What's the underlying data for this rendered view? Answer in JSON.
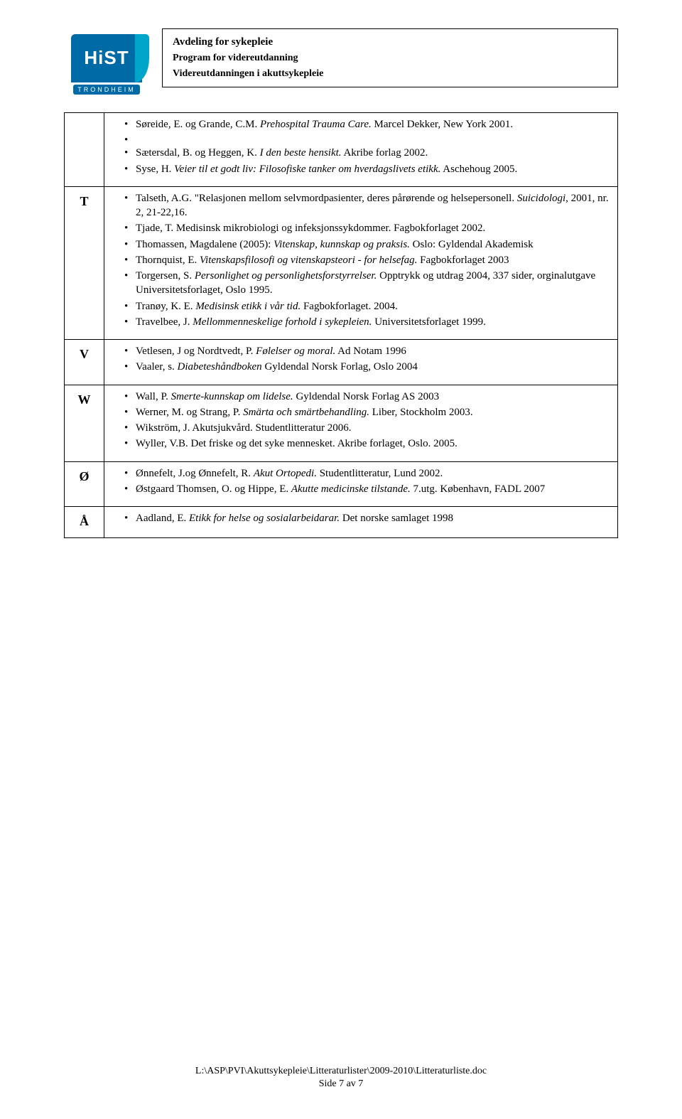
{
  "header": {
    "logo_main": "HiST",
    "logo_sub": "TRONDHEIM",
    "line1": "Avdeling for sykepleie",
    "line2": "Program for videreutdanning",
    "line3": "Videreutdanningen i akuttsykepleie"
  },
  "rows": [
    {
      "letter": "",
      "items": [
        {
          "html": "Søreide, E. og Grande, C.M. <span class=\"italic\">Prehospital Trauma Care.</span> Marcel Dekker, New York 2001."
        },
        {
          "html": "",
          "blank": true
        },
        {
          "html": "Sætersdal, B. og Heggen, K. <span class=\"italic\">I den beste hensikt.</span> Akribe forlag 2002."
        },
        {
          "html": "Syse, H. <span class=\"italic\">Veier til et godt liv: Filosofiske tanker om hverdagslivets etikk.</span> Aschehoug 2005."
        }
      ]
    },
    {
      "letter": "T",
      "items": [
        {
          "html": "Talseth, A.G. \"Relasjonen mellom selvmordpasienter, deres pårørende og helsepersonell. <span class=\"italic\">Suicidologi,</span> 2001, nr. 2, 21-22,16."
        },
        {
          "html": "Tjade, T. Medisinsk mikrobiologi og infeksjonssykdommer. Fagbokforlaget 2002."
        },
        {
          "html": "Thomassen, Magdalene (2005): <span class=\"italic\">Vitenskap, kunnskap og praksis.</span> Oslo: Gyldendal Akademisk"
        },
        {
          "html": "Thornquist, E. <span class=\"italic\">Vitenskapsfilosofi og vitenskapsteori - for helsefag.</span> Fagbokforlaget 2003"
        },
        {
          "html": "Torgersen, S. <span class=\"italic\">Personlighet og personlighetsforstyrrelser.</span> Opptrykk og utdrag 2004, 337 sider, orginalutgave Universitetsforlaget, Oslo 1995."
        },
        {
          "html": "Tranøy, K. E. <span class=\"italic\">Medisinsk etikk i vår tid.</span> Fagbokforlaget. 2004."
        },
        {
          "html": "Travelbee, J. <span class=\"italic\">Mellommenneskelige forhold i sykepleien.</span> Universitetsforlaget 1999."
        }
      ]
    },
    {
      "letter": "V",
      "items": [
        {
          "html": "Vetlesen, J og Nordtvedt, P. <span class=\"italic\">Følelser og moral.</span> Ad Notam 1996"
        },
        {
          "html": "Vaaler, s. <span class=\"italic\">Diabeteshåndboken</span> Gyldendal Norsk Forlag, Oslo 2004"
        }
      ]
    },
    {
      "letter": "W",
      "items": [
        {
          "html": "Wall, P. <span class=\"italic\">Smerte-kunnskap om lidelse.</span> Gyldendal Norsk Forlag AS 2003"
        },
        {
          "html": "Werner, M. og Strang, P. <span class=\"italic\">Smärta och smärtbehandling.</span> Liber, Stockholm 2003."
        },
        {
          "html": "Wikström, J. Akutsjukvård. Studentlitteratur 2006."
        },
        {
          "html": "Wyller, V.B. Det friske og det syke mennesket. Akribe forlaget, Oslo. 2005."
        }
      ]
    },
    {
      "letter": "Ø",
      "items": [
        {
          "html": "Ønnefelt, J.og Ønnefelt, R. <span class=\"italic\">Akut Ortopedi.</span> Studentlitteratur, Lund 2002."
        },
        {
          "html": "Østgaard Thomsen, O. og Hippe, E. <span class=\"italic\">Akutte medicinske tilstande.</span> 7.utg. København, FADL 2007"
        }
      ]
    },
    {
      "letter": "Å",
      "items": [
        {
          "html": "Aadland, E. <span class=\"italic\">Etikk for helse og sosialarbeidarar.</span> Det norske samlaget 1998"
        }
      ]
    }
  ],
  "footer": {
    "path": "L:\\ASP\\PVI\\Akuttsykepleie\\Litteraturlister\\2009-2010\\Litteraturliste.doc",
    "page": "Side 7 av 7"
  }
}
